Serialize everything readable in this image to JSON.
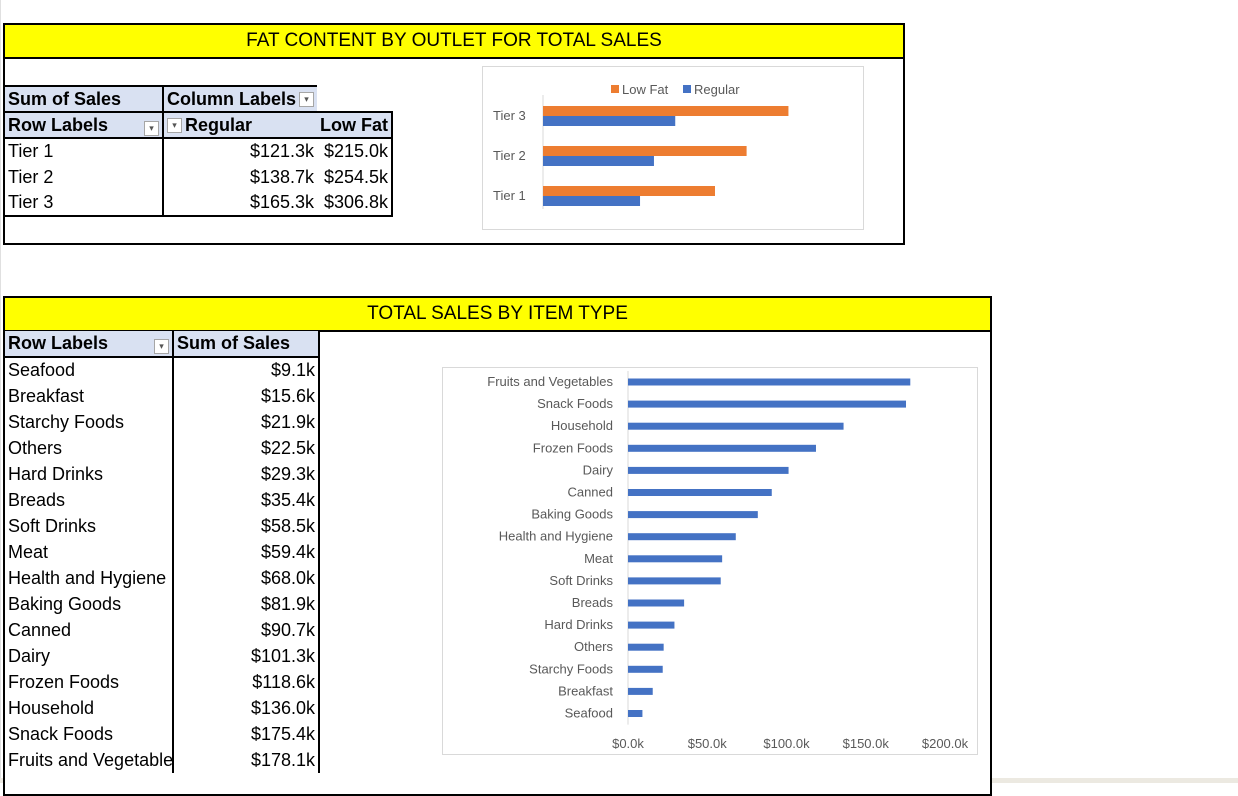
{
  "fat_panel": {
    "title": "FAT CONTENT BY OUTLET FOR TOTAL SALES",
    "pivot": {
      "corner_label": "Sum of Sales",
      "column_labels": "Column Labels",
      "row_labels": "Row Labels",
      "col_regular": "Regular",
      "col_lowfat": "Low Fat",
      "rows": [
        {
          "label": "Tier 1",
          "regular": "$121.3k",
          "lowfat": "$215.0k"
        },
        {
          "label": "Tier 2",
          "regular": "$138.7k",
          "lowfat": "$254.5k"
        },
        {
          "label": "Tier 3",
          "regular": "$165.3k",
          "lowfat": "$306.8k"
        }
      ]
    }
  },
  "item_panel": {
    "title": "TOTAL SALES BY ITEM TYPE",
    "pivot": {
      "row_labels": "Row Labels",
      "sum_label": "Sum of Sales",
      "rows": [
        {
          "label": "Seafood",
          "value": "$9.1k"
        },
        {
          "label": "Breakfast",
          "value": "$15.6k"
        },
        {
          "label": "Starchy Foods",
          "value": "$21.9k"
        },
        {
          "label": "Others",
          "value": "$22.5k"
        },
        {
          "label": "Hard Drinks",
          "value": "$29.3k"
        },
        {
          "label": "Breads",
          "value": "$35.4k"
        },
        {
          "label": "Soft Drinks",
          "value": "$58.5k"
        },
        {
          "label": "Meat",
          "value": "$59.4k"
        },
        {
          "label": "Health and Hygiene",
          "value": "$68.0k"
        },
        {
          "label": "Baking Goods",
          "value": "$81.9k"
        },
        {
          "label": "Canned",
          "value": "$90.7k"
        },
        {
          "label": "Dairy",
          "value": "$101.3k"
        },
        {
          "label": "Frozen Foods",
          "value": "$118.6k"
        },
        {
          "label": "Household",
          "value": "$136.0k"
        },
        {
          "label": "Snack Foods",
          "value": "$175.4k"
        },
        {
          "label": "Fruits and Vegetables",
          "value": "$178.1k"
        }
      ]
    }
  },
  "colors": {
    "banner": "#ffff00",
    "header": "#d9e1f2",
    "orange": "#ed7d31",
    "blue": "#4472c4"
  },
  "chart_data": [
    {
      "type": "bar",
      "orientation": "horizontal",
      "categories": [
        "Tier 1",
        "Tier 2",
        "Tier 3"
      ],
      "series": [
        {
          "name": "Low Fat",
          "color": "#ed7d31",
          "values": [
            215.0,
            254.5,
            306.8
          ]
        },
        {
          "name": "Regular",
          "color": "#4472c4",
          "values": [
            121.3,
            138.7,
            165.3
          ]
        }
      ],
      "legend": "top",
      "xlim": [
        0,
        350
      ],
      "grid": false
    },
    {
      "type": "bar",
      "orientation": "horizontal",
      "categories": [
        "Fruits and Vegetables",
        "Snack Foods",
        "Household",
        "Frozen Foods",
        "Dairy",
        "Canned",
        "Baking Goods",
        "Health and Hygiene",
        "Meat",
        "Soft Drinks",
        "Breads",
        "Hard Drinks",
        "Others",
        "Starchy Foods",
        "Breakfast",
        "Seafood"
      ],
      "values": [
        178.1,
        175.4,
        136.0,
        118.6,
        101.3,
        90.7,
        81.9,
        68.0,
        59.4,
        58.5,
        35.4,
        29.3,
        22.5,
        21.9,
        15.6,
        9.1
      ],
      "color": "#4472c4",
      "xlim": [
        0,
        200
      ],
      "xticks": [
        "$0.0k",
        "$50.0k",
        "$100.0k",
        "$150.0k",
        "$200.0k"
      ],
      "grid": false
    }
  ]
}
